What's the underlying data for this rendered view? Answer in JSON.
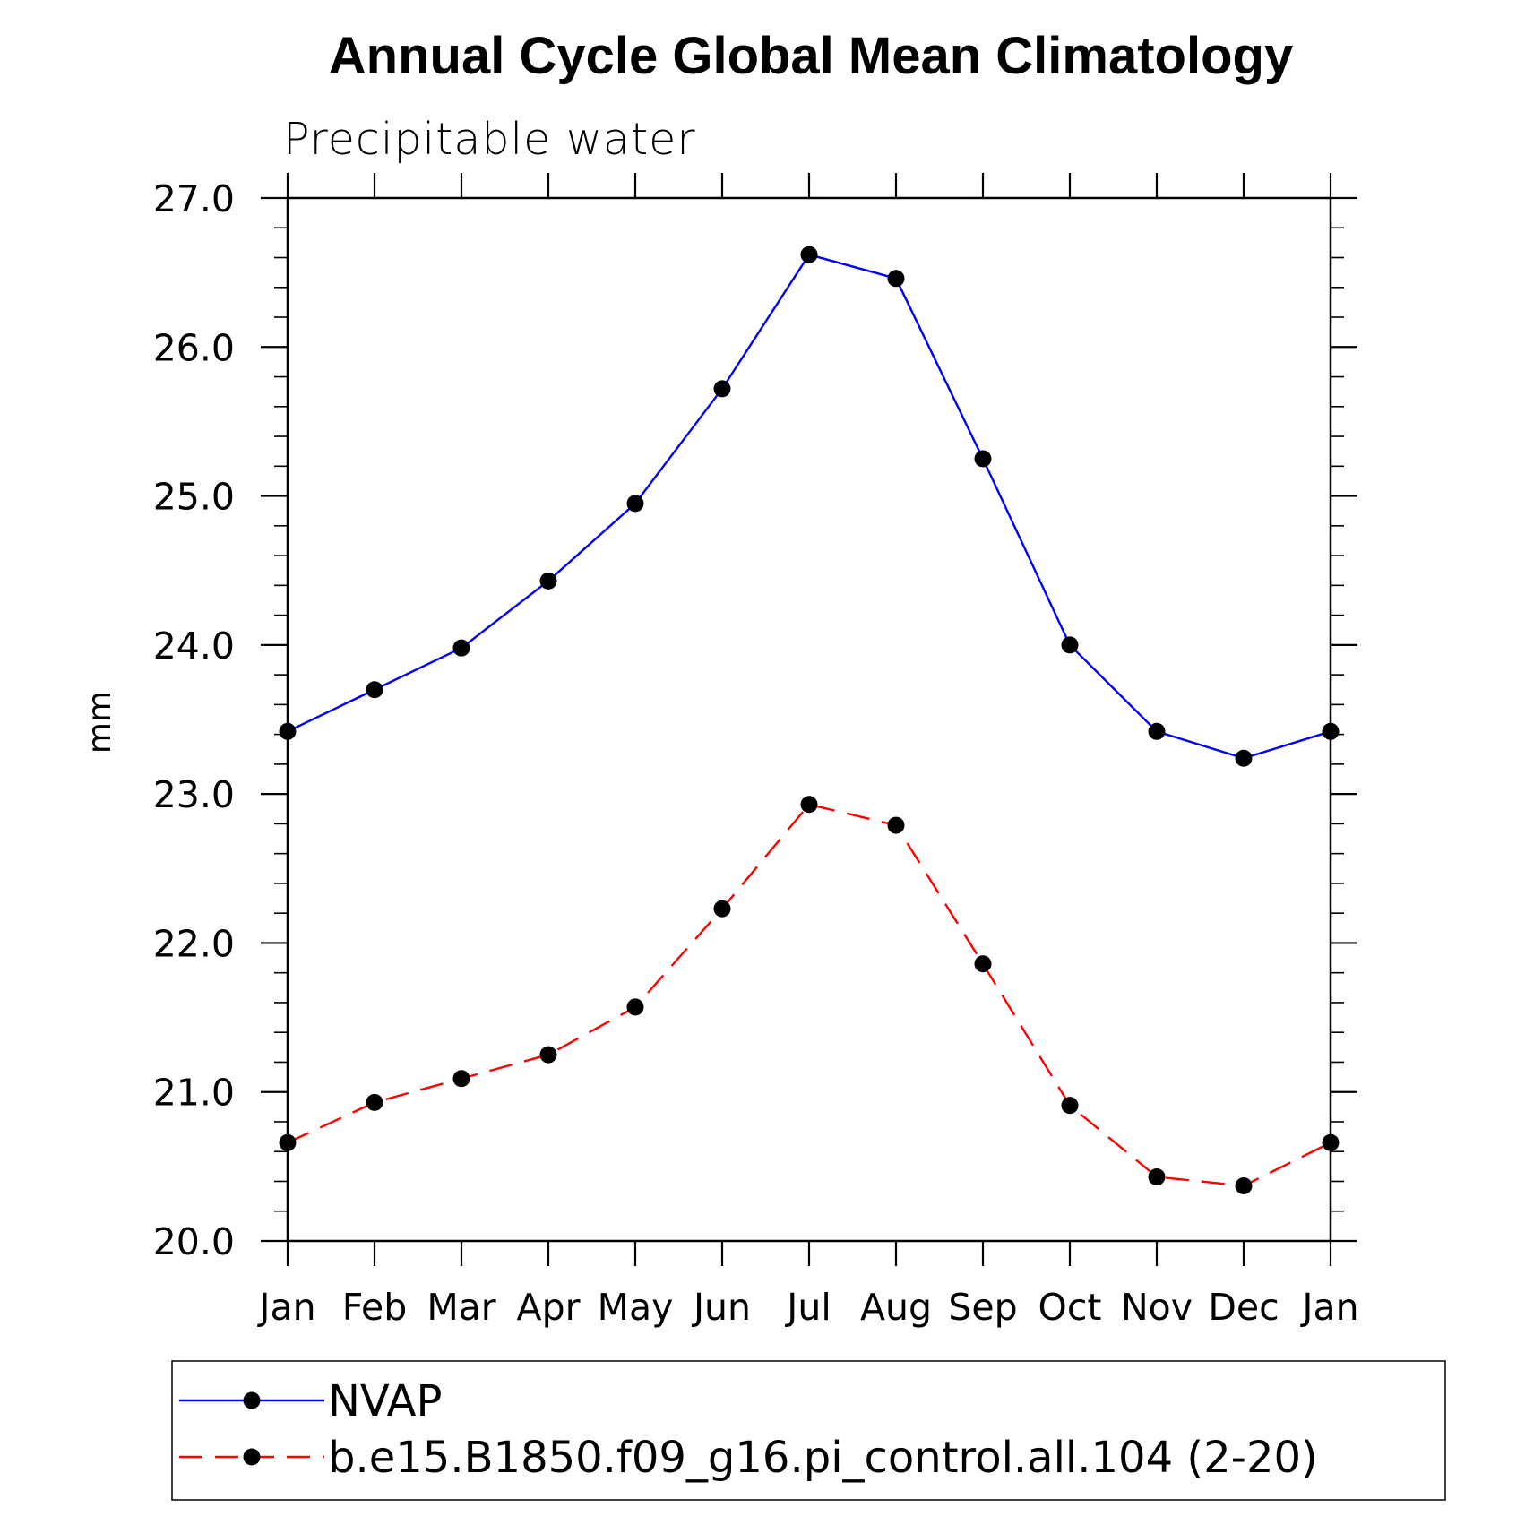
{
  "chart_data": {
    "type": "line",
    "title": "Annual Cycle Global Mean Climatology",
    "subtitle": "Precipitable water",
    "xlabel": "",
    "ylabel": "mm",
    "categories": [
      "Jan",
      "Feb",
      "Mar",
      "Apr",
      "May",
      "Jun",
      "Jul",
      "Aug",
      "Sep",
      "Oct",
      "Nov",
      "Dec",
      "Jan"
    ],
    "ylim": [
      20.0,
      27.0
    ],
    "yticks": [
      "20.0",
      "21.0",
      "22.0",
      "23.0",
      "24.0",
      "25.0",
      "26.0",
      "27.0"
    ],
    "grid": false,
    "legend_position": "bottom",
    "series": [
      {
        "name": "NVAP",
        "color": "#0000ff",
        "dashed": false,
        "marker": "filled-circle",
        "values": [
          23.42,
          23.7,
          23.98,
          24.43,
          24.95,
          25.72,
          26.62,
          26.46,
          25.25,
          24.0,
          23.42,
          23.24,
          23.42
        ]
      },
      {
        "name": "b.e15.B1850.f09_g16.pi_control.all.104 (2-20)",
        "color": "#ff0000",
        "dashed": true,
        "marker": "filled-circle",
        "values": [
          20.66,
          20.93,
          21.09,
          21.25,
          21.57,
          22.23,
          22.93,
          22.79,
          21.86,
          20.91,
          20.43,
          20.37,
          20.66
        ]
      }
    ]
  }
}
